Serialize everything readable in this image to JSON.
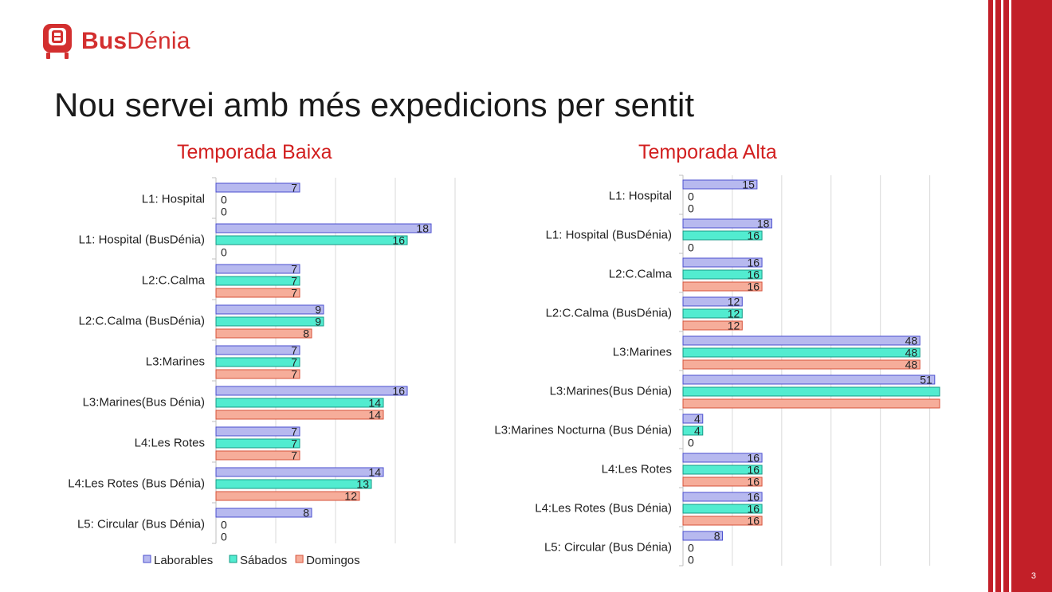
{
  "logo": {
    "brand_bold": "Bus",
    "brand_light": "Dénia",
    "icon": "bus-logo-icon"
  },
  "page": {
    "title": "Nou servei amb més expedicions per sentit",
    "number": "3"
  },
  "colors": {
    "accent": "#c21f28",
    "laborables": "#b7b9ef",
    "laborables_border": "#4b4fcf",
    "sabados": "#52ecd0",
    "sabados_border": "#149a86",
    "domingos": "#f6ad9a",
    "domingos_border": "#d7523a"
  },
  "chart_data": [
    {
      "type": "bar",
      "orientation": "horizontal",
      "title": "Temporada Baixa",
      "categories": [
        "L1: Hospital",
        "L1: Hospital (BusDénia)",
        "L2:C.Calma",
        "L2:C.Calma (BusDénia)",
        "L3:Marines",
        "L3:Marines(Bus Dénia)",
        "L4:Les Rotes",
        "L4:Les Rotes (Bus Dénia)",
        "L5: Circular (Bus Dénia)"
      ],
      "series": [
        {
          "name": "Laborables",
          "values": [
            7,
            18,
            7,
            9,
            7,
            16,
            7,
            14,
            8
          ]
        },
        {
          "name": "Sábados",
          "values": [
            0,
            16,
            7,
            9,
            7,
            14,
            7,
            13,
            0
          ]
        },
        {
          "name": "Domingos",
          "values": [
            0,
            0,
            7,
            8,
            7,
            14,
            7,
            12,
            0
          ]
        }
      ],
      "xlim": [
        0,
        20
      ],
      "grid": true,
      "legend": "bottom"
    },
    {
      "type": "bar",
      "orientation": "horizontal",
      "title": "Temporada Alta",
      "categories": [
        "L1: Hospital",
        "L1: Hospital (BusDénia)",
        "L2:C.Calma",
        "L2:C.Calma (BusDénia)",
        "L3:Marines",
        "L3:Marines(Bus Dénia)",
        "L3:Marines Nocturna (Bus Dénia)",
        "L4:Les Rotes",
        "L4:Les Rotes (Bus Dénia)",
        "L5: Circular (Bus Dénia)"
      ],
      "series": [
        {
          "name": "Laborables",
          "values": [
            15,
            18,
            16,
            12,
            48,
            51,
            4,
            16,
            16,
            8
          ]
        },
        {
          "name": "Sábados",
          "values": [
            0,
            16,
            16,
            12,
            48,
            null,
            4,
            16,
            16,
            0
          ]
        },
        {
          "name": "Domingos",
          "values": [
            0,
            0,
            16,
            12,
            48,
            null,
            0,
            16,
            16,
            0
          ]
        }
      ],
      "xlim": [
        0,
        52
      ],
      "grid": true,
      "legend": "none"
    }
  ]
}
